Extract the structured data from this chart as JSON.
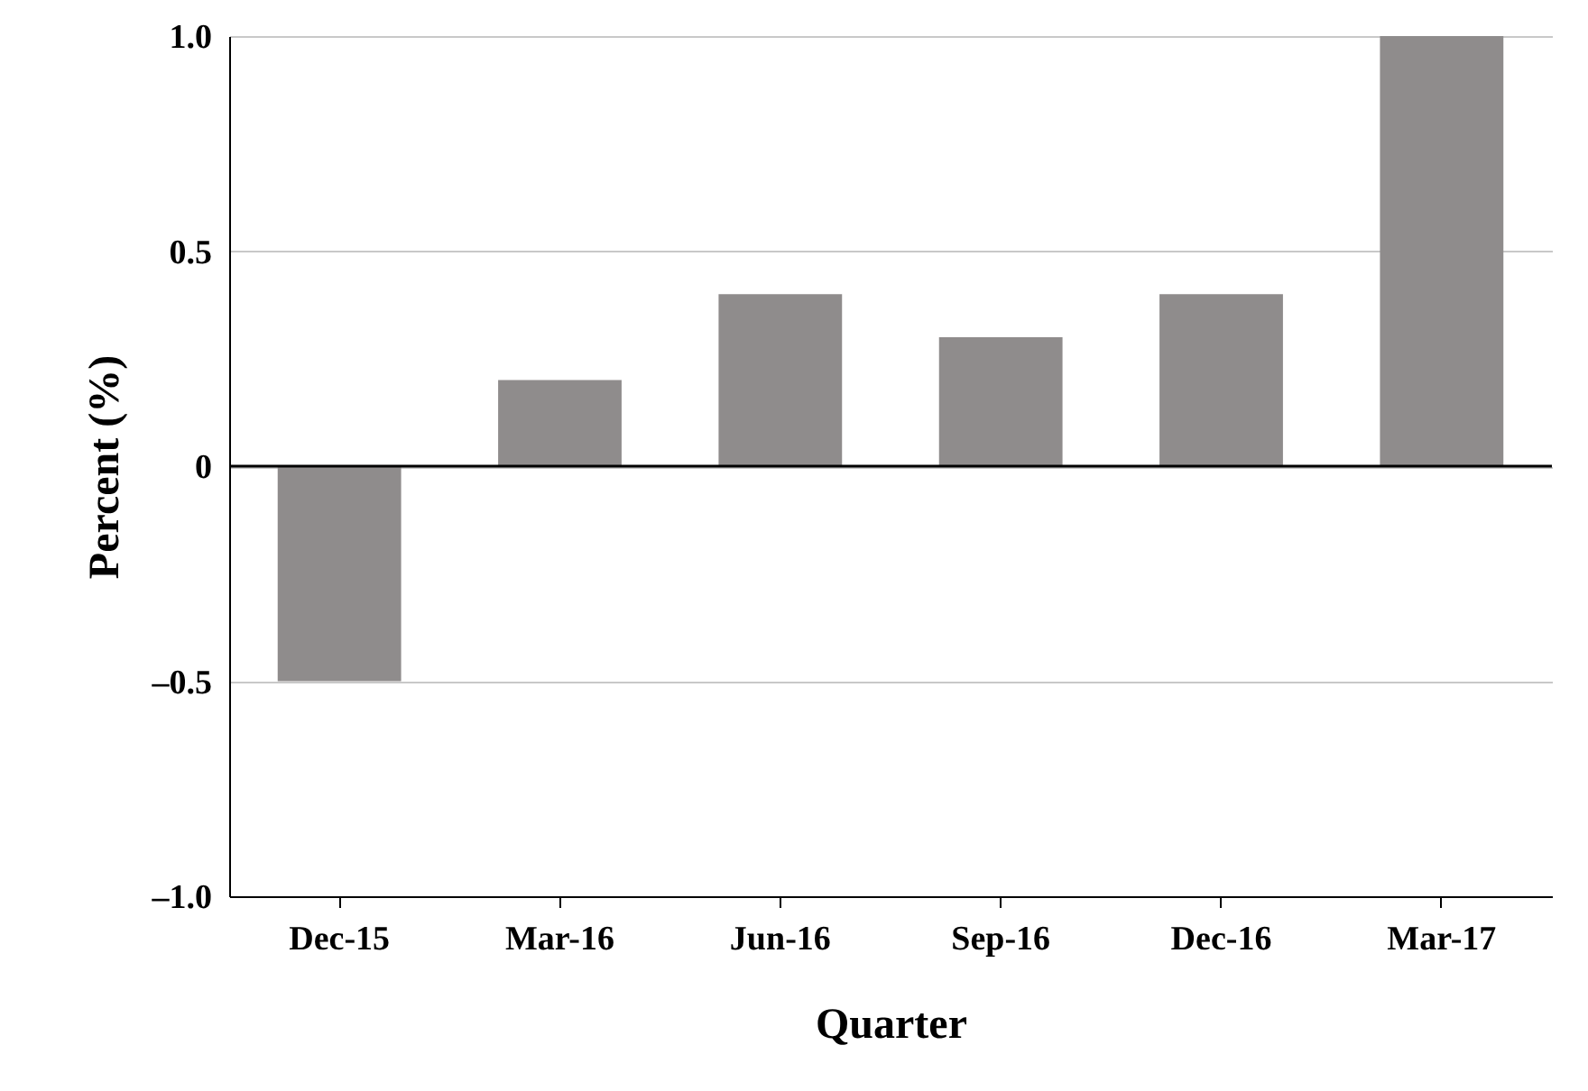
{
  "chart_data": {
    "type": "bar",
    "xlabel": "Quarter",
    "ylabel": "Percent (%)",
    "categories": [
      "Dec-15",
      "Mar-16",
      "Jun-16",
      "Sep-16",
      "Dec-16",
      "Mar-17"
    ],
    "values": [
      -0.5,
      0.2,
      0.4,
      0.3,
      0.4,
      1.0
    ],
    "color": "#8f8c8c",
    "ylim": [
      -1,
      1
    ],
    "yticks": [
      {
        "value": -1,
        "label": "–1.0"
      },
      {
        "value": -0.5,
        "label": "–0.5"
      },
      0,
      0.5,
      {
        "value": 1,
        "label": "1.0"
      }
    ],
    "grid": "y",
    "ref_lines": [
      {
        "axis": "y",
        "value": 0,
        "color": "#000000"
      }
    ]
  }
}
